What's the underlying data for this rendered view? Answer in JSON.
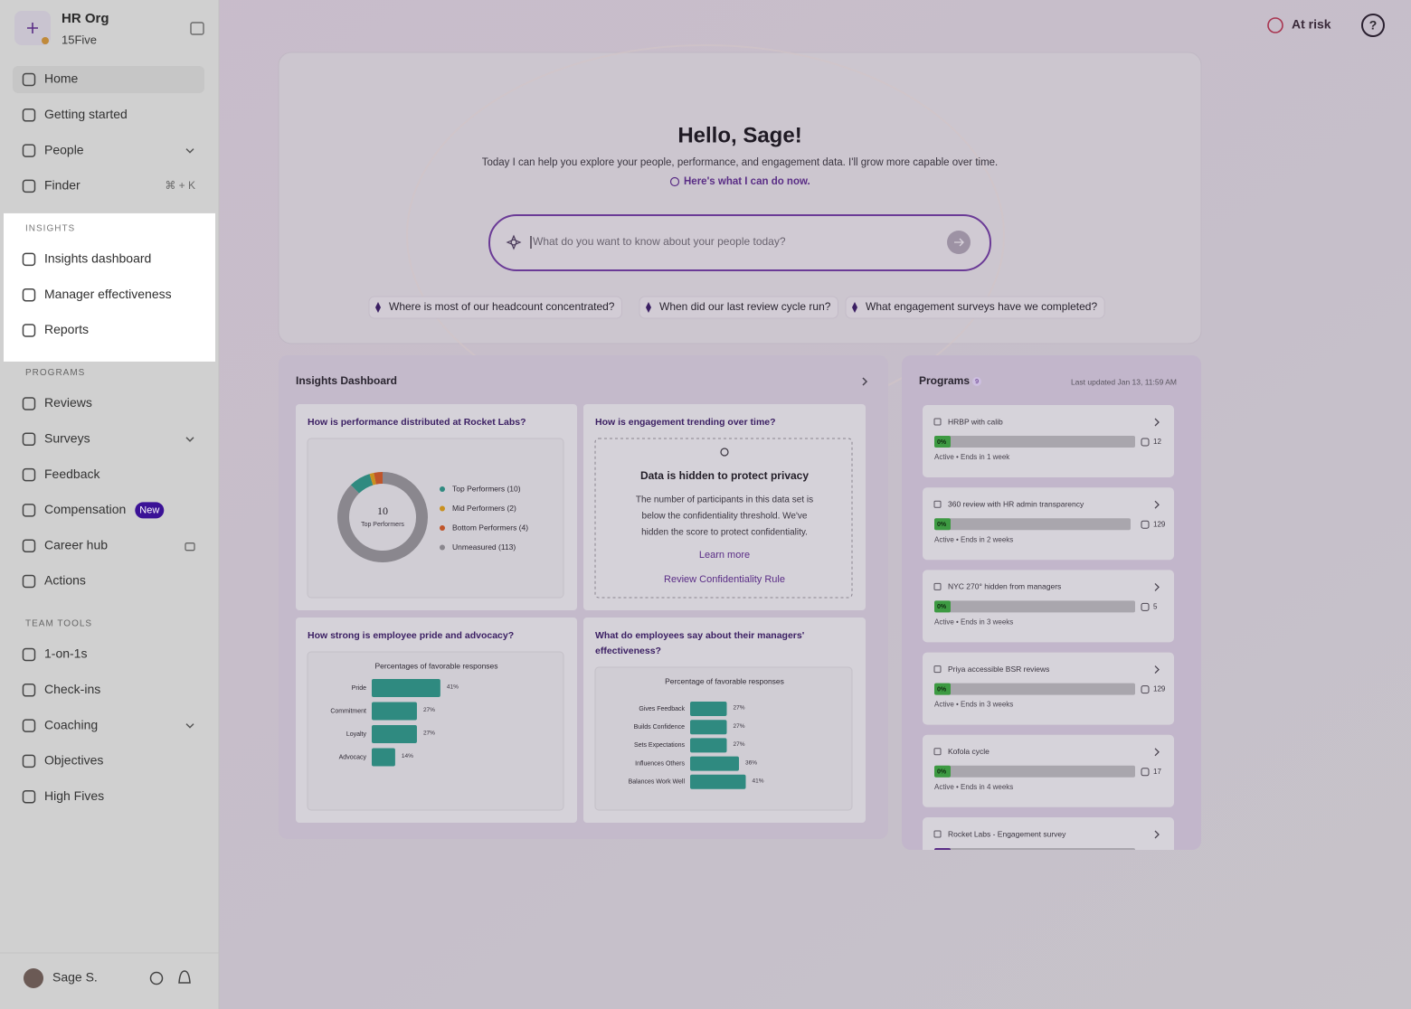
{
  "topbar": {
    "at_risk": "At risk"
  },
  "sidebar": {
    "org_name": "HR Org",
    "org_sub": "15Five",
    "nav": [
      {
        "label": "Home"
      },
      {
        "label": "Getting started"
      },
      {
        "label": "People",
        "expandable": true
      },
      {
        "label": "Finder",
        "shortcut": "⌘ + K"
      }
    ],
    "groups": [
      {
        "heading": "INSIGHTS",
        "highlighted": true,
        "items": [
          {
            "label": "Insights dashboard"
          },
          {
            "label": "Manager effectiveness"
          },
          {
            "label": "Reports"
          }
        ]
      },
      {
        "heading": "PROGRAMS",
        "items": [
          {
            "label": "Reviews"
          },
          {
            "label": "Surveys",
            "expandable": true
          },
          {
            "label": "Feedback"
          },
          {
            "label": "Compensation",
            "badge": "New"
          },
          {
            "label": "Career hub",
            "locked": true
          },
          {
            "label": "Actions"
          }
        ]
      },
      {
        "heading": "TEAM TOOLS",
        "items": [
          {
            "label": "1-on-1s"
          },
          {
            "label": "Check-ins"
          },
          {
            "label": "Coaching",
            "expandable": true
          },
          {
            "label": "Objectives"
          },
          {
            "label": "High Fives"
          }
        ]
      }
    ],
    "user": "Sage  S."
  },
  "assistant": {
    "greeting": "Hello, Sage!",
    "intro": "Today I can help you explore your people, performance, and engagement data. I'll grow more capable over time.",
    "link": "Here's what I can do now.",
    "placeholder": "What do you want to know about your people today?",
    "suggestions": [
      "Where is most of our headcount concentrated?",
      "When did our last review cycle run?",
      "What engagement surveys have we completed?"
    ]
  },
  "insights_dashboard": {
    "title": "Insights Dashboard",
    "cards": [
      {
        "title_lines": [
          "How is performance distributed at Rocket Labs?"
        ],
        "chart": {
          "type": "donut",
          "center_label": "Top Performers",
          "legend": [
            "Top Performers (10)",
            "Mid Performers (2)",
            "Bottom Performers (4)",
            "Unmeasured (113)"
          ],
          "values": [
            10,
            2,
            4,
            113
          ],
          "colors": [
            "#2f8a80",
            "#c9901f",
            "#c0552a",
            "#8a878e"
          ]
        }
      },
      {
        "title_lines": [
          "How is engagement trending over time?"
        ],
        "privacy": {
          "heading": "Data is hidden to protect privacy",
          "body_lines": [
            "The number of participants in this data set is",
            "below the confidentiality threshold. We've",
            "hidden the score to protect confidentiality."
          ],
          "links": [
            "Learn more",
            "Review Confidentiality Rule"
          ]
        }
      },
      {
        "title_lines": [
          "How strong is employee pride and advocacy?"
        ],
        "chart": {
          "type": "bar",
          "subtitle": "Percentages of favorable responses",
          "categories": [
            "Pride",
            "Commitment",
            "Loyalty",
            "Advocacy"
          ],
          "values": [
            41,
            27,
            27,
            14
          ],
          "value_labels": [
            "41%",
            "27%",
            "27%",
            "14%"
          ],
          "color": "#2f8a80"
        }
      },
      {
        "title_lines": [
          "What do employees say about their managers'",
          "effectiveness?"
        ],
        "chart": {
          "type": "bar",
          "subtitle": "Percentage of favorable responses",
          "categories": [
            "Gives Feedback",
            "Builds Confidence",
            "Sets Expectations",
            "Influences Others",
            "Balances Work Well"
          ],
          "values": [
            27,
            27,
            27,
            36,
            41
          ],
          "value_labels": [
            "27%",
            "27%",
            "27%",
            "36%",
            "41%"
          ],
          "color": "#2f8a80"
        }
      }
    ]
  },
  "programs": {
    "title": "Programs",
    "count": 9,
    "updated": "Last updated Jan 13, 11:59 AM",
    "items": [
      {
        "name": "HRBP with calib",
        "progress": "0%",
        "participants": 12,
        "status": "Active • Ends in 1 week"
      },
      {
        "name": "360 review with HR admin transparency",
        "progress": "0%",
        "participants": 129,
        "status": "Active • Ends in 2 weeks"
      },
      {
        "name": "NYC 270° hidden from managers",
        "progress": "0%",
        "participants": 5,
        "status": "Active • Ends in 3 weeks"
      },
      {
        "name": "Priya accessible BSR reviews",
        "progress": "0%",
        "participants": 129,
        "status": "Active • Ends in 3 weeks"
      },
      {
        "name": "Kofola cycle",
        "progress": "0%",
        "participants": 17,
        "status": "Active • Ends in 4 weeks"
      },
      {
        "name": "Rocket Labs - Engagement survey"
      }
    ]
  }
}
